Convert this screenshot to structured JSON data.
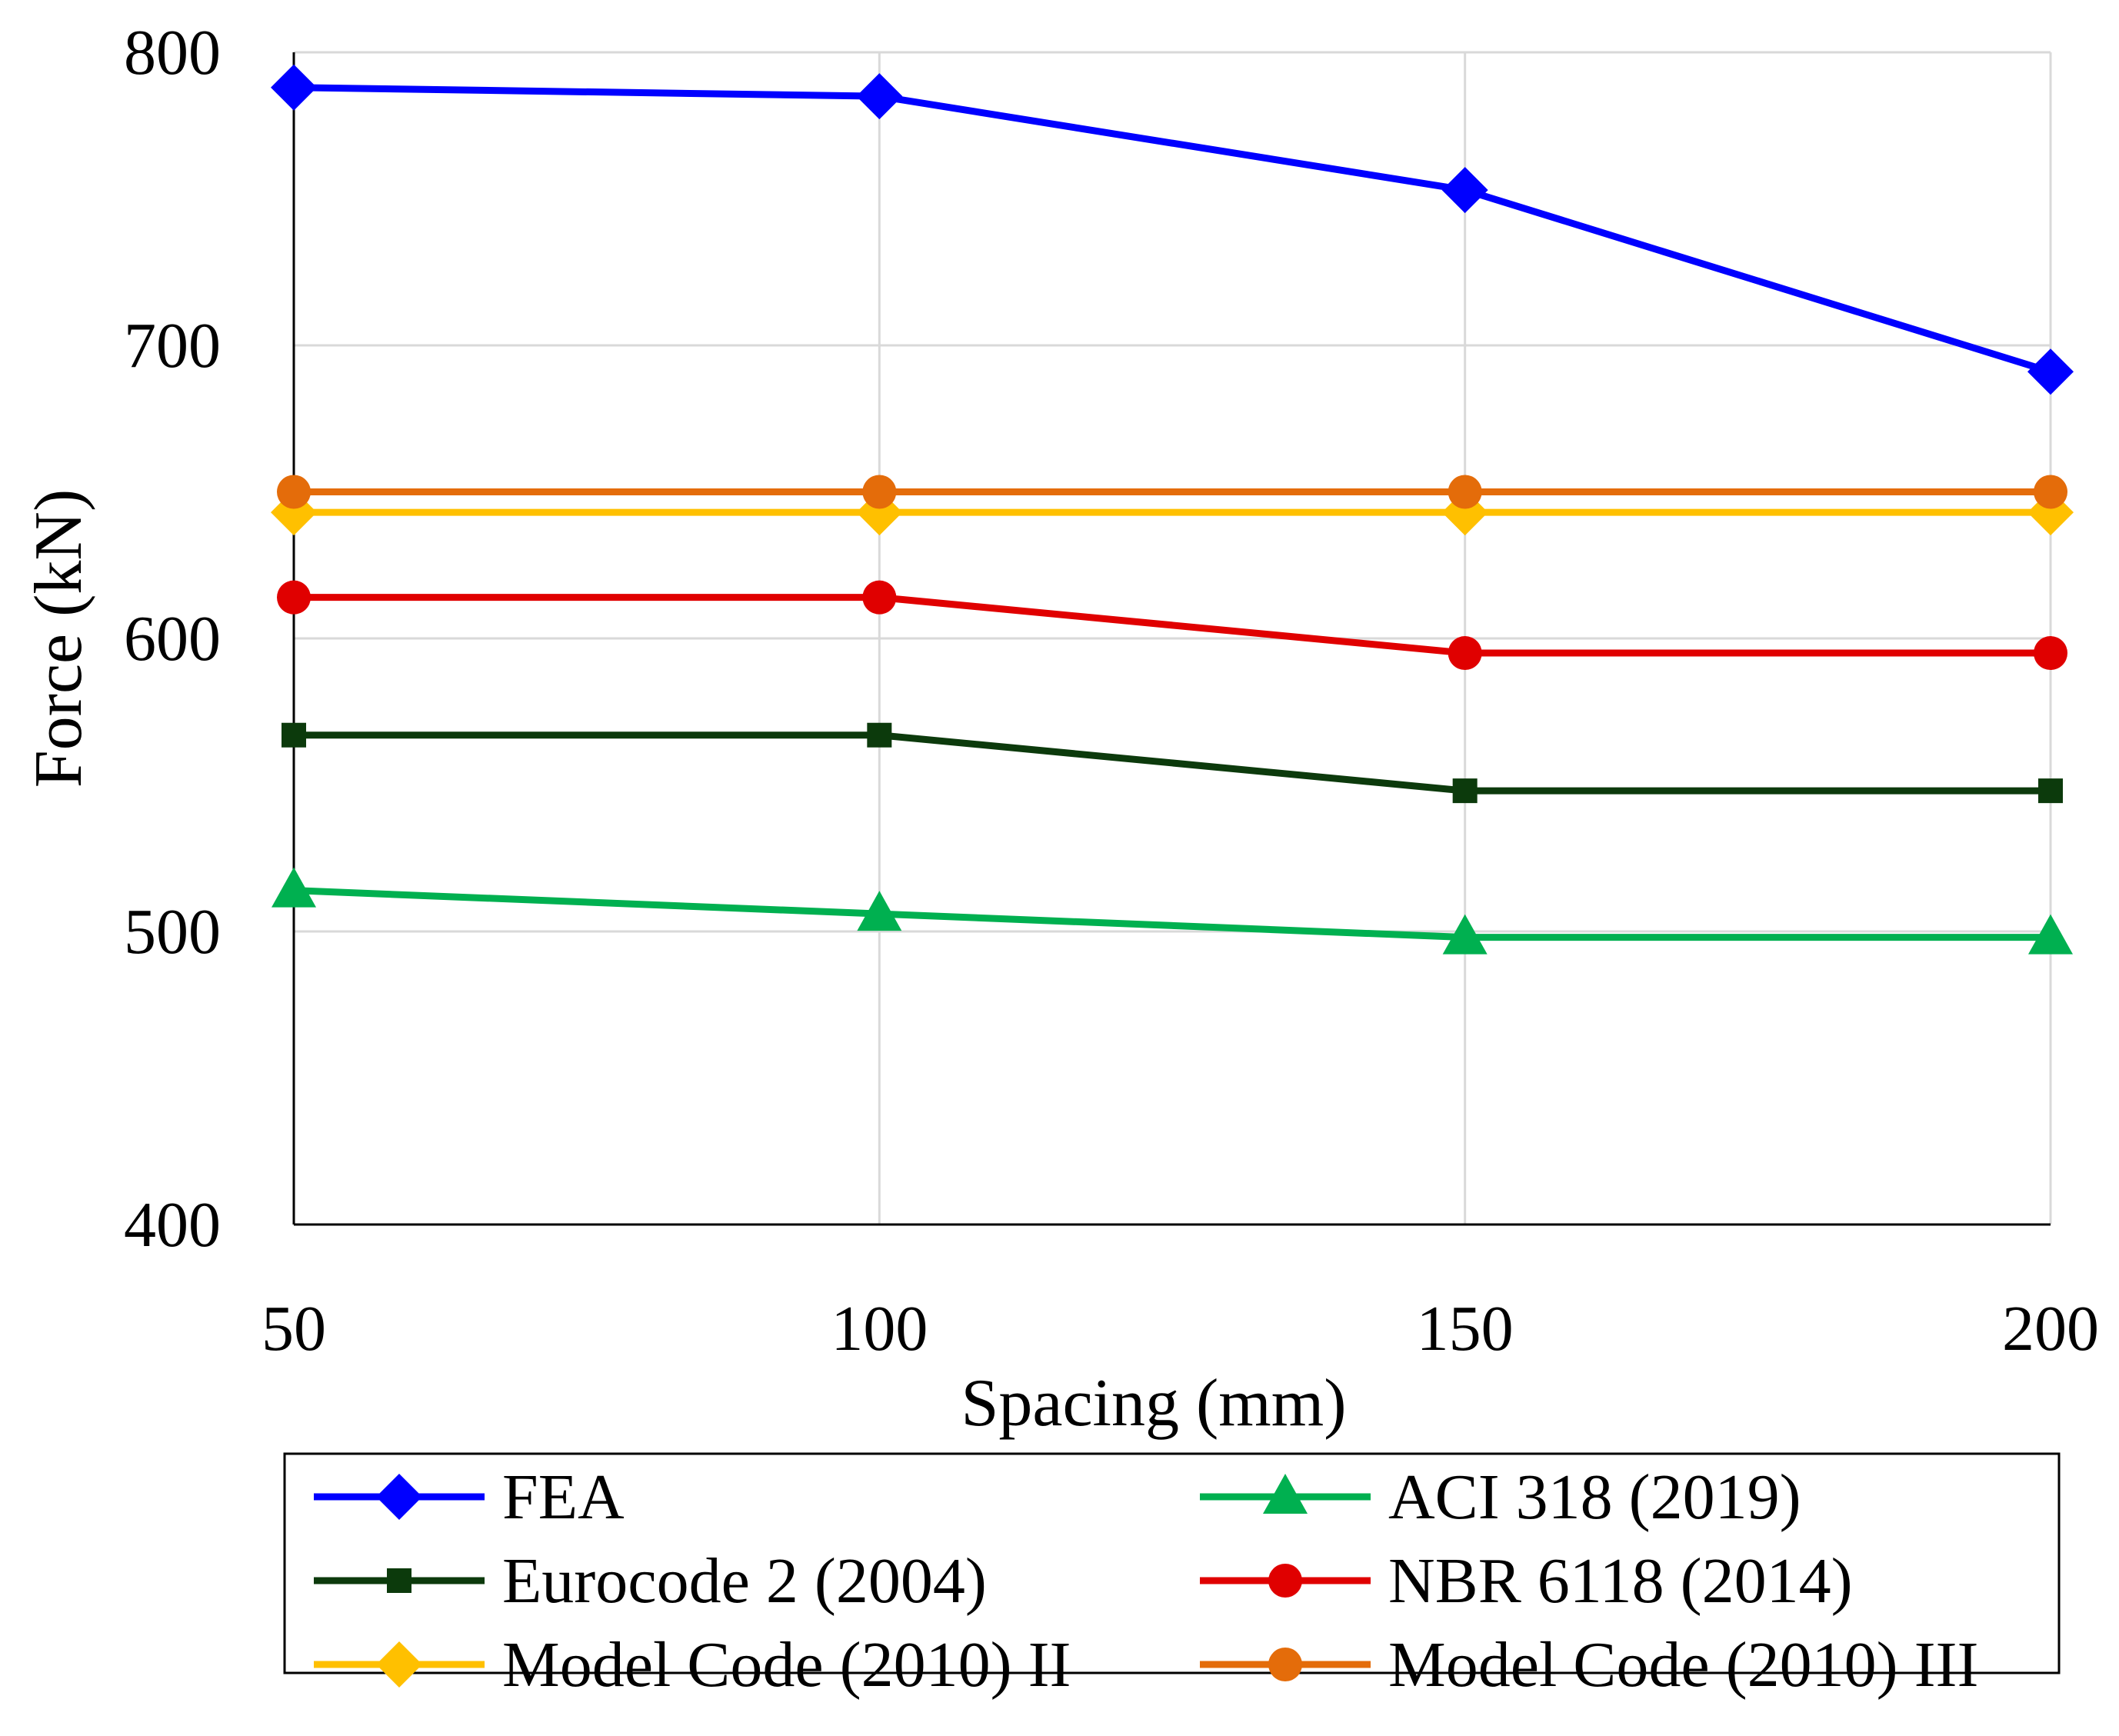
{
  "chart_data": {
    "type": "line",
    "title": "",
    "xlabel": "Spacing (mm)",
    "ylabel": "Force (kN)",
    "x": [
      50,
      100,
      150,
      200
    ],
    "xticks": [
      50,
      100,
      150,
      200
    ],
    "xtick_labels": [
      "50",
      "100",
      "150",
      "200"
    ],
    "yticks": [
      400,
      500,
      600,
      700,
      800
    ],
    "ytick_labels": [
      "400",
      "500",
      "600",
      "700",
      "800"
    ],
    "xlim": [
      50,
      200
    ],
    "ylim": [
      400,
      800
    ],
    "grid": true,
    "legend_position": "bottom",
    "series": [
      {
        "name": "FEA",
        "marker": "diamond",
        "color": "#0000ff",
        "values": [
          788,
          785,
          753,
          691
        ]
      },
      {
        "name": "ACI 318 (2019)",
        "marker": "triangle",
        "color": "#00b050",
        "values": [
          514,
          506,
          498,
          498
        ]
      },
      {
        "name": "Eurocode 2 (2004)",
        "marker": "square",
        "color": "#0c3a0c",
        "values": [
          567,
          567,
          548,
          548
        ]
      },
      {
        "name": "NBR 6118 (2014)",
        "marker": "circle",
        "color": "#e00000",
        "values": [
          614,
          614,
          595,
          595
        ]
      },
      {
        "name": "Model Code (2010) II",
        "marker": "diamond",
        "color": "#ffc000",
        "values": [
          643,
          643,
          643,
          643
        ]
      },
      {
        "name": "Model Code (2010) III",
        "marker": "circle",
        "color": "#e46c0a",
        "values": [
          650,
          650,
          650,
          650
        ]
      }
    ]
  }
}
